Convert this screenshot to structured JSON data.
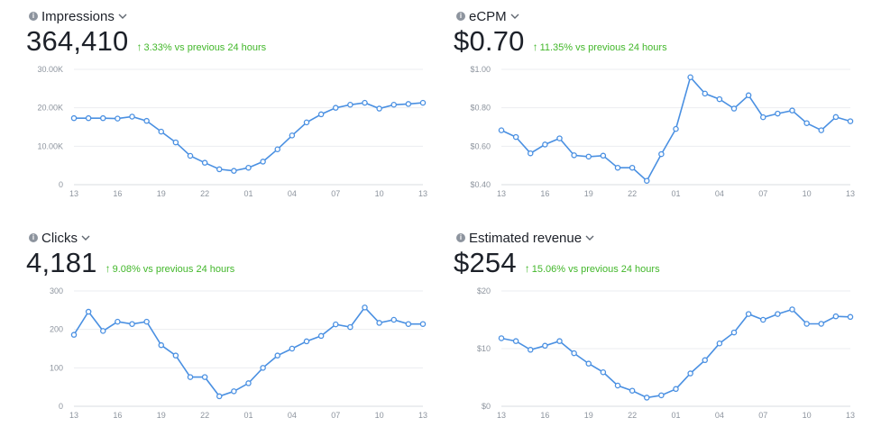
{
  "panels": [
    {
      "title": "Impressions",
      "value": "364,410",
      "change_pct": "3.33%",
      "change_text": "vs previous 24 hours",
      "chart_data": {
        "type": "line",
        "x": [
          "13",
          "14",
          "15",
          "16",
          "17",
          "18",
          "19",
          "20",
          "21",
          "22",
          "23",
          "00",
          "01",
          "02",
          "03",
          "04",
          "05",
          "06",
          "07",
          "08",
          "09",
          "10",
          "11",
          "12",
          "13"
        ],
        "x_tick_labels": [
          "13",
          "16",
          "19",
          "22",
          "01",
          "04",
          "07",
          "10",
          "13"
        ],
        "y_tick_labels": [
          "0",
          "10.00K",
          "20.00K",
          "30.00K"
        ],
        "ylim": [
          0,
          30000
        ],
        "values": [
          17300,
          17300,
          17300,
          17200,
          17700,
          16600,
          13800,
          11000,
          7500,
          5700,
          4000,
          3600,
          4400,
          6000,
          9200,
          12800,
          16200,
          18300,
          20000,
          20800,
          21300,
          19800,
          20800,
          21000,
          21300
        ]
      }
    },
    {
      "title": "eCPM",
      "value": "$0.70",
      "change_pct": "11.35%",
      "change_text": "vs previous 24 hours",
      "chart_data": {
        "type": "line",
        "x": [
          "13",
          "14",
          "15",
          "16",
          "17",
          "18",
          "19",
          "20",
          "21",
          "22",
          "23",
          "00",
          "01",
          "02",
          "03",
          "04",
          "05",
          "06",
          "07",
          "08",
          "09",
          "10",
          "11",
          "12",
          "13"
        ],
        "x_tick_labels": [
          "13",
          "16",
          "19",
          "22",
          "01",
          "04",
          "07",
          "10",
          "13"
        ],
        "y_tick_labels": [
          "$0.40",
          "$0.60",
          "$0.80",
          "$1.00"
        ],
        "ylim": [
          0.4,
          1.0
        ],
        "values": [
          0.683,
          0.648,
          0.563,
          0.609,
          0.641,
          0.553,
          0.546,
          0.551,
          0.488,
          0.488,
          0.42,
          0.559,
          0.69,
          0.959,
          0.874,
          0.845,
          0.796,
          0.865,
          0.751,
          0.77,
          0.786,
          0.72,
          0.683,
          0.752,
          0.73
        ]
      }
    },
    {
      "title": "Clicks",
      "value": "4,181",
      "change_pct": "9.08%",
      "change_text": "vs previous 24 hours",
      "chart_data": {
        "type": "line",
        "x": [
          "13",
          "14",
          "15",
          "16",
          "17",
          "18",
          "19",
          "20",
          "21",
          "22",
          "23",
          "00",
          "01",
          "02",
          "03",
          "04",
          "05",
          "06",
          "07",
          "08",
          "09",
          "10",
          "11",
          "12",
          "13"
        ],
        "x_tick_labels": [
          "13",
          "16",
          "19",
          "22",
          "01",
          "04",
          "07",
          "10",
          "13"
        ],
        "y_tick_labels": [
          "0",
          "100",
          "200",
          "300"
        ],
        "ylim": [
          0,
          300
        ],
        "values": [
          186,
          246,
          196,
          220,
          214,
          220,
          159,
          132,
          76,
          76,
          26,
          39,
          60,
          100,
          132,
          150,
          169,
          183,
          213,
          206,
          257,
          217,
          225,
          214,
          214
        ]
      }
    },
    {
      "title": "Estimated revenue",
      "value": "$254",
      "change_pct": "15.06%",
      "change_text": "vs previous 24 hours",
      "chart_data": {
        "type": "line",
        "x": [
          "13",
          "14",
          "15",
          "16",
          "17",
          "18",
          "19",
          "20",
          "21",
          "22",
          "23",
          "00",
          "01",
          "02",
          "03",
          "04",
          "05",
          "06",
          "07",
          "08",
          "09",
          "10",
          "11",
          "12",
          "13"
        ],
        "x_tick_labels": [
          "13",
          "16",
          "19",
          "22",
          "01",
          "04",
          "07",
          "10",
          "13"
        ],
        "y_tick_labels": [
          "$0",
          "$10",
          "$20"
        ],
        "ylim": [
          0,
          20
        ],
        "values": [
          11.8,
          11.3,
          9.8,
          10.5,
          11.3,
          9.2,
          7.4,
          5.9,
          3.6,
          2.7,
          1.5,
          1.9,
          3.0,
          5.7,
          8.0,
          10.9,
          12.8,
          16.0,
          15.0,
          16.0,
          16.8,
          14.3,
          14.3,
          15.6,
          15.5
        ]
      }
    }
  ]
}
